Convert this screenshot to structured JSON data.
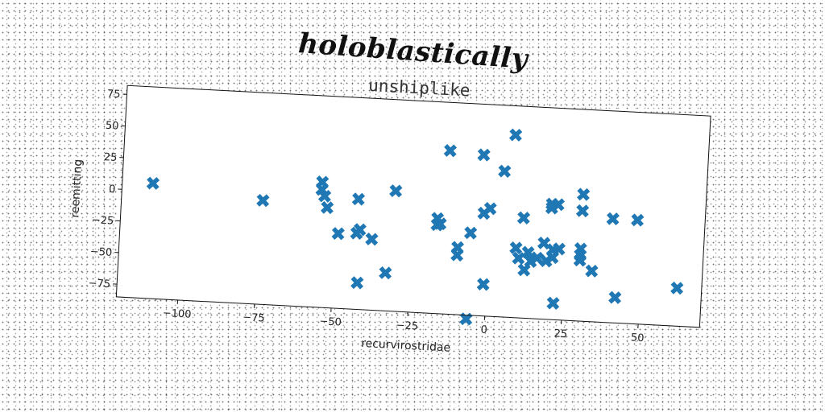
{
  "supertitle": "holoblastically",
  "chart_data": {
    "type": "scatter",
    "title": "unshiplike",
    "xlabel": "recurvirostridae",
    "ylabel": "reemitting",
    "xlim": [
      -120,
      70
    ],
    "ylim": [
      -85,
      82
    ],
    "xticks": [
      -100,
      -75,
      -50,
      -25,
      0,
      25,
      50
    ],
    "yticks": [
      -75,
      -50,
      -25,
      0,
      25,
      50,
      75
    ],
    "grid": false,
    "marker": "X",
    "marker_color": "#1f77b4",
    "series": [
      {
        "x": [
          -110,
          -74,
          -55,
          -55,
          -54,
          -53,
          -49,
          -42,
          -43,
          -42,
          -43,
          -38,
          -33,
          -31,
          -17,
          -17,
          -16,
          -14,
          -10,
          -10,
          -6,
          -3,
          -2,
          -1,
          0,
          4,
          7,
          9,
          10,
          11,
          12,
          13,
          14,
          16,
          18,
          19,
          20,
          20,
          21,
          21,
          22,
          22,
          23,
          30,
          30,
          30,
          30,
          30,
          34,
          40,
          42,
          48,
          62,
          -6
        ],
        "y": [
          6,
          -3,
          14,
          8,
          3,
          -6,
          -26,
          -22,
          -25,
          -64,
          2,
          -29,
          -55,
          10,
          -10,
          -15,
          -14,
          44,
          -32,
          -38,
          -20,
          42,
          -4,
          -60,
          0,
          30,
          59,
          -30,
          -38,
          -6,
          -47,
          -33,
          -40,
          -37,
          -25,
          -39,
          6,
          3,
          -30,
          -36,
          -72,
          6,
          -29,
          15,
          2,
          -28,
          -33,
          -37,
          -45,
          -3,
          -65,
          -3,
          -55,
          -88
        ]
      }
    ]
  }
}
